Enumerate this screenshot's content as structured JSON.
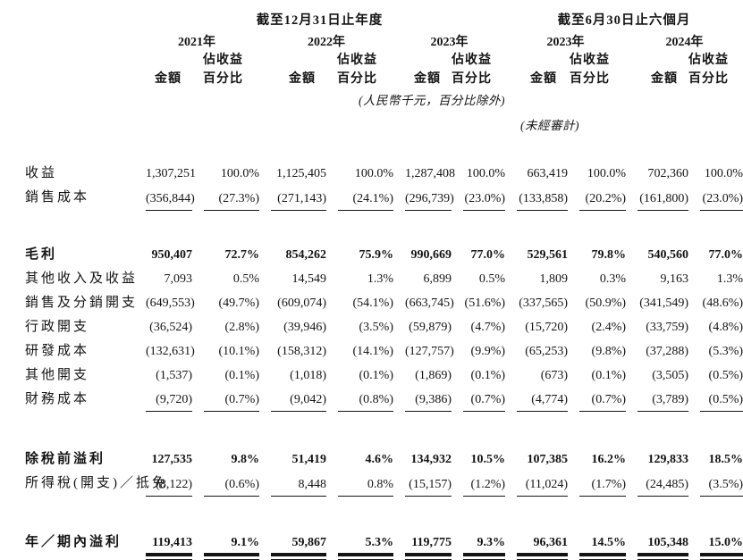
{
  "table": {
    "group_headers": [
      {
        "label": "截至12月31日止年度"
      },
      {
        "label": "截至6月30日止六個月"
      }
    ],
    "years": [
      "2021年",
      "2022年",
      "2023年",
      "2023年",
      "2024年"
    ],
    "col_headers": {
      "amount": "金額",
      "pct_line1": "佔收益",
      "pct_line2": "百分比"
    },
    "notes": {
      "currency": "(人民幣千元，百分比除外)",
      "unaudited": "(未經審計)"
    },
    "rows": [
      {
        "label": "收益",
        "values": [
          "1,307,251",
          "100.0%",
          "1,125,405",
          "100.0%",
          "1,287,408",
          "100.0%",
          "663,419",
          "100.0%",
          "702,360",
          "100.0%"
        ]
      },
      {
        "label": "銷售成本",
        "values": [
          "(356,844)",
          "(27.3%)",
          "(271,143)",
          "(24.1%)",
          "(296,739)",
          "(23.0%)",
          "(133,858)",
          "(20.2%)",
          "(161,800)",
          "(23.0%)"
        ]
      },
      {
        "label": "毛利",
        "values": [
          "950,407",
          "72.7%",
          "854,262",
          "75.9%",
          "990,669",
          "77.0%",
          "529,561",
          "79.8%",
          "540,560",
          "77.0%"
        ]
      },
      {
        "label": "其他收入及收益",
        "values": [
          "7,093",
          "0.5%",
          "14,549",
          "1.3%",
          "6,899",
          "0.5%",
          "1,809",
          "0.3%",
          "9,163",
          "1.3%"
        ]
      },
      {
        "label": "銷售及分銷開支",
        "values": [
          "(649,553)",
          "(49.7%)",
          "(609,074)",
          "(54.1%)",
          "(663,745)",
          "(51.6%)",
          "(337,565)",
          "(50.9%)",
          "(341,549)",
          "(48.6%)"
        ]
      },
      {
        "label": "行政開支",
        "values": [
          "(36,524)",
          "(2.8%)",
          "(39,946)",
          "(3.5%)",
          "(59,879)",
          "(4.7%)",
          "(15,720)",
          "(2.4%)",
          "(33,759)",
          "(4.8%)"
        ]
      },
      {
        "label": "研發成本",
        "values": [
          "(132,631)",
          "(10.1%)",
          "(158,312)",
          "(14.1%)",
          "(127,757)",
          "(9.9%)",
          "(65,253)",
          "(9.8%)",
          "(37,288)",
          "(5.3%)"
        ]
      },
      {
        "label": "其他開支",
        "values": [
          "(1,537)",
          "(0.1%)",
          "(1,018)",
          "(0.1%)",
          "(1,869)",
          "(0.1%)",
          "(673)",
          "(0.1%)",
          "(3,505)",
          "(0.5%)"
        ]
      },
      {
        "label": "財務成本",
        "values": [
          "(9,720)",
          "(0.7%)",
          "(9,042)",
          "(0.8%)",
          "(9,386)",
          "(0.7%)",
          "(4,774)",
          "(0.7%)",
          "(3,789)",
          "(0.5%)"
        ]
      },
      {
        "label": "除稅前溢利",
        "values": [
          "127,535",
          "9.8%",
          "51,419",
          "4.6%",
          "134,932",
          "10.5%",
          "107,385",
          "16.2%",
          "129,833",
          "18.5%"
        ]
      },
      {
        "label": "所得稅(開支)／抵免",
        "values": [
          "(8,122)",
          "(0.6%)",
          "8,448",
          "0.8%",
          "(15,157)",
          "(1.2%)",
          "(11,024)",
          "(1.7%)",
          "(24,485)",
          "(3.5%)"
        ]
      },
      {
        "label": "年／期內溢利",
        "values": [
          "119,413",
          "9.1%",
          "59,867",
          "5.3%",
          "119,775",
          "9.3%",
          "96,361",
          "14.5%",
          "105,348",
          "15.0%"
        ]
      }
    ]
  },
  "colors": {
    "text": "#141414",
    "background": "#ffffff"
  }
}
